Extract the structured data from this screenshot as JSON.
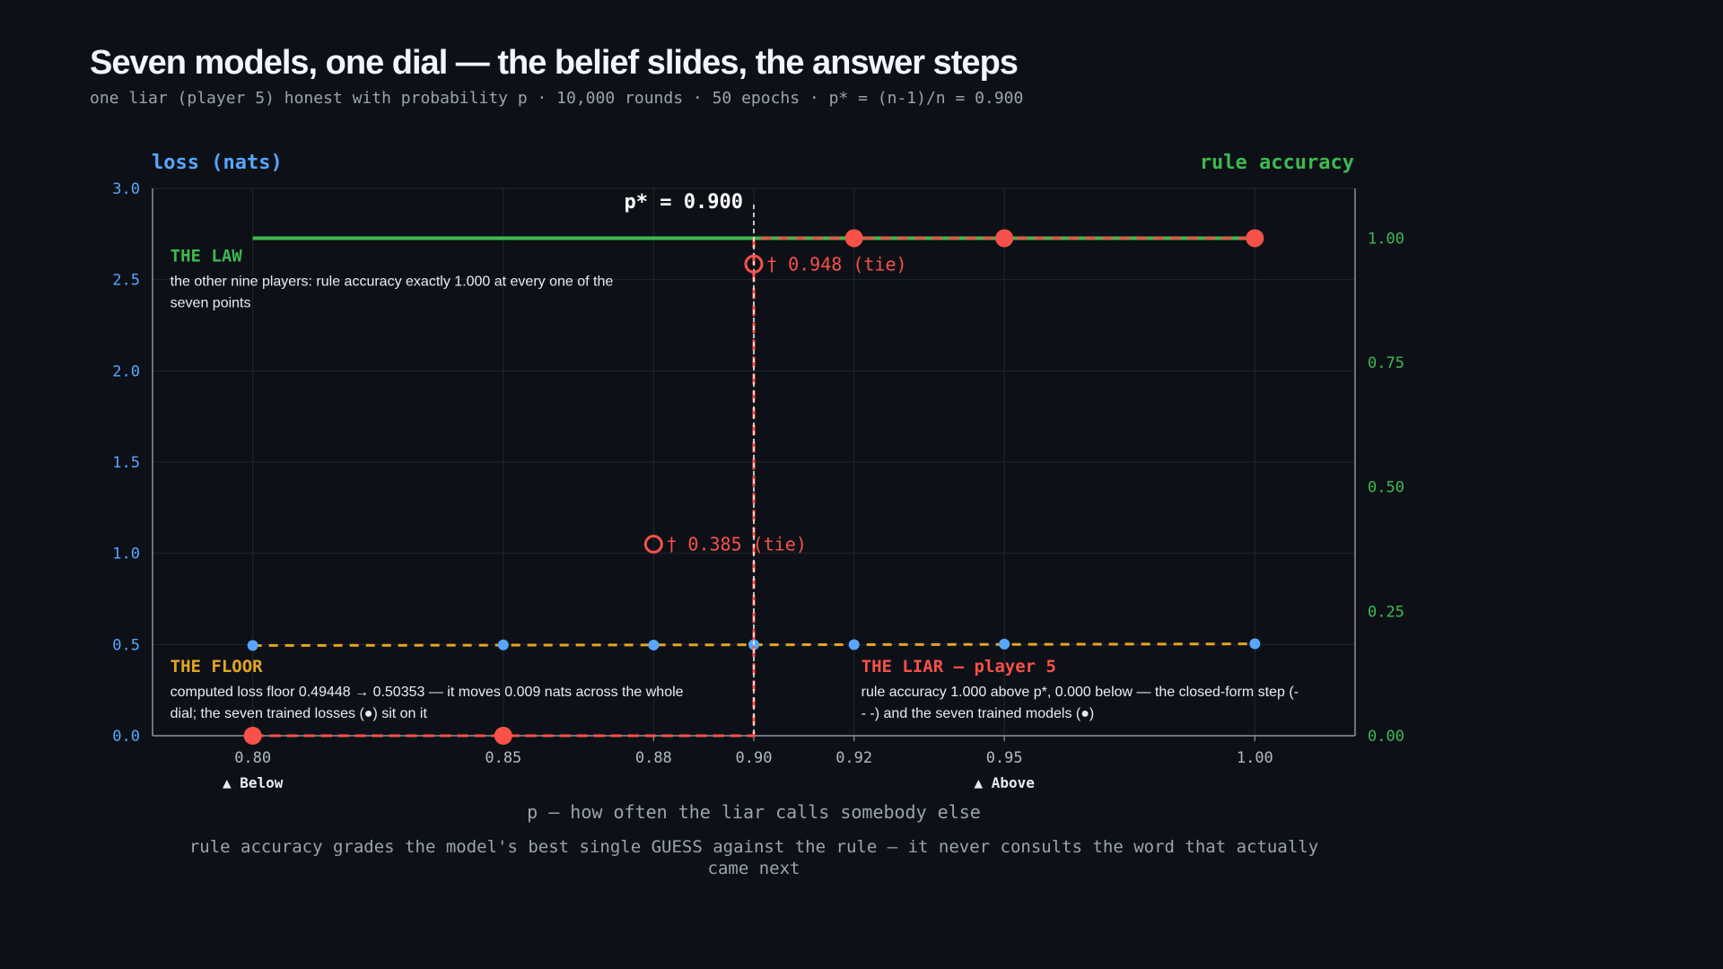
{
  "title": "Seven models, one dial — the belief slides, the answer steps",
  "subtitle": "one liar (player 5) honest with probability p · 10,000 rounds · 50 epochs · p* = (n-1)/n = 0.900",
  "colors": {
    "background": "#0d1117",
    "loss_axis": "#58a6ff",
    "accuracy_axis": "#3fb950",
    "floor": "#e3a521",
    "liar": "#f85149",
    "law": "#3fb950",
    "grid": "#21262d",
    "axis": "#8b949e",
    "text": "#e6edf3",
    "muted": "#9aa4ae"
  },
  "chart_data": {
    "type": "line",
    "title": "Seven models, one dial — the belief slides, the answer steps",
    "xlabel": "p — how often the liar calls somebody else",
    "ylabel_left": "loss (nats)",
    "ylabel_right": "rule accuracy",
    "xlim": [
      0.78,
      1.02
    ],
    "ylim_left": [
      0,
      3.0
    ],
    "ylim_right": [
      0,
      1.1
    ],
    "x_ticks": [
      0.8,
      0.85,
      0.88,
      0.9,
      0.92,
      0.95,
      1.0
    ],
    "x_tick_labels": [
      "0.80",
      "0.85",
      "0.88",
      "0.90",
      "0.92",
      "0.95",
      "1.00"
    ],
    "y_left_ticks": [
      0,
      0.5,
      1.0,
      1.5,
      2.0,
      2.5,
      3.0
    ],
    "y_left_tick_labels": [
      "0.0",
      "0.5",
      "1.0",
      "1.5",
      "2.0",
      "2.5",
      "3.0"
    ],
    "y_right_ticks": [
      0,
      0.25,
      0.5,
      0.75,
      1.0
    ],
    "y_right_tick_labels": [
      "0.00",
      "0.25",
      "0.50",
      "0.75",
      "1.00"
    ],
    "grid": true,
    "threshold": {
      "x": 0.9,
      "label": "p* = 0.900"
    },
    "regions": [
      {
        "x": 0.8,
        "label": "▲ Below"
      },
      {
        "x": 0.95,
        "label": "▲ Above"
      }
    ],
    "series": [
      {
        "name": "THE LAW",
        "axis": "right",
        "style": "solid",
        "x": [
          0.8,
          0.85,
          0.88,
          0.9,
          0.92,
          0.95,
          1.0
        ],
        "y": [
          1.0,
          1.0,
          1.0,
          1.0,
          1.0,
          1.0,
          1.0
        ]
      },
      {
        "name": "THE FLOOR",
        "axis": "left",
        "style": "dashed",
        "x": [
          0.8,
          0.85,
          0.88,
          0.9,
          0.92,
          0.95,
          1.0
        ],
        "y": [
          0.49448,
          0.4965,
          0.4977,
          0.4985,
          0.4993,
          0.5005,
          0.50353
        ]
      },
      {
        "name": "trained losses",
        "axis": "left",
        "style": "points",
        "x": [
          0.8,
          0.85,
          0.88,
          0.9,
          0.92,
          0.95,
          1.0
        ],
        "y": [
          0.495,
          0.498,
          0.497,
          0.499,
          0.499,
          0.502,
          0.504
        ]
      },
      {
        "name": "THE LIAR — player 5",
        "axis": "right",
        "style": "step",
        "step_x": [
          0.8,
          0.9,
          0.9,
          1.0
        ],
        "step_y": [
          0.0,
          0.0,
          1.0,
          1.0
        ],
        "points": [
          {
            "x": 0.8,
            "y": 0.0
          },
          {
            "x": 0.85,
            "y": 0.0
          },
          {
            "x": 0.92,
            "y": 1.0
          },
          {
            "x": 0.95,
            "y": 1.0
          },
          {
            "x": 1.0,
            "y": 1.0
          }
        ],
        "ties": [
          {
            "x": 0.88,
            "y": 0.385,
            "label": "† 0.385 (tie)"
          },
          {
            "x": 0.9,
            "y": 0.948,
            "label": "† 0.948 (tie)"
          }
        ]
      }
    ],
    "annotations": [
      {
        "id": "law",
        "x": 0.8,
        "y_left": 2.6,
        "heading": "THE LAW",
        "body": [
          "the other nine players: rule accuracy exactly 1.000 at every one of the",
          "seven points"
        ]
      },
      {
        "id": "floor",
        "x": 0.8,
        "y_left": 0.35,
        "heading": "THE FLOOR",
        "body": [
          "computed loss floor 0.49448 → 0.50353 — it moves 0.009 nats across the whole",
          "dial; the seven trained losses (●) sit on it"
        ]
      },
      {
        "id": "liar",
        "x": 0.92,
        "y_left": 0.35,
        "heading": "THE LIAR — player 5",
        "body": [
          "rule accuracy 1.000 above p*, 0.000 below — the closed-form step (-",
          "- -) and the seven trained models (●)"
        ]
      }
    ],
    "footnote": [
      "rule accuracy grades the model's best single GUESS against the rule — it never consults the word that actually",
      "came next"
    ]
  }
}
